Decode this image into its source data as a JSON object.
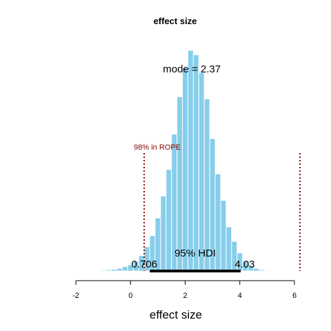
{
  "chart_data": {
    "type": "bar",
    "title": "effect size",
    "xlabel": "effect size",
    "ylabel": "",
    "xlim": [
      -2,
      6
    ],
    "xticks": [
      "-2",
      "0",
      "2",
      "4",
      "6"
    ],
    "bin_width": 0.2,
    "bins": [
      {
        "x": -1.0,
        "height": 0.002
      },
      {
        "x": -0.8,
        "height": 0.003
      },
      {
        "x": -0.6,
        "height": 0.004
      },
      {
        "x": -0.4,
        "height": 0.006
      },
      {
        "x": -0.2,
        "height": 0.01
      },
      {
        "x": 0.0,
        "height": 0.014
      },
      {
        "x": 0.2,
        "height": 0.022
      },
      {
        "x": 0.4,
        "height": 0.035
      },
      {
        "x": 0.6,
        "height": 0.055
      },
      {
        "x": 0.8,
        "height": 0.08
      },
      {
        "x": 1.0,
        "height": 0.12
      },
      {
        "x": 1.2,
        "height": 0.17
      },
      {
        "x": 1.4,
        "height": 0.23
      },
      {
        "x": 1.6,
        "height": 0.31
      },
      {
        "x": 1.8,
        "height": 0.395
      },
      {
        "x": 2.0,
        "height": 0.46
      },
      {
        "x": 2.2,
        "height": 0.5
      },
      {
        "x": 2.4,
        "height": 0.49
      },
      {
        "x": 2.6,
        "height": 0.45
      },
      {
        "x": 2.8,
        "height": 0.39
      },
      {
        "x": 3.0,
        "height": 0.3
      },
      {
        "x": 3.2,
        "height": 0.22
      },
      {
        "x": 3.4,
        "height": 0.16
      },
      {
        "x": 3.6,
        "height": 0.1
      },
      {
        "x": 3.8,
        "height": 0.067
      },
      {
        "x": 4.0,
        "height": 0.041
      },
      {
        "x": 4.2,
        "height": 0.022
      },
      {
        "x": 4.4,
        "height": 0.012
      },
      {
        "x": 4.6,
        "height": 0.006
      },
      {
        "x": 4.8,
        "height": 0.003
      },
      {
        "x": 5.0,
        "height": 0.002
      },
      {
        "x": 5.2,
        "height": 0.001
      }
    ],
    "bar_color": "#87ceeb",
    "mode": {
      "value": 2.37,
      "label": "mode = 2.37"
    },
    "hdi": {
      "low": 0.706,
      "high": 4.03,
      "low_label": "0.706",
      "high_label": "4.03",
      "label": "95% HDI"
    },
    "rope": {
      "low": 0.5,
      "high": 6.2,
      "label": "98% in ROPE",
      "color": "#8b0000"
    }
  }
}
